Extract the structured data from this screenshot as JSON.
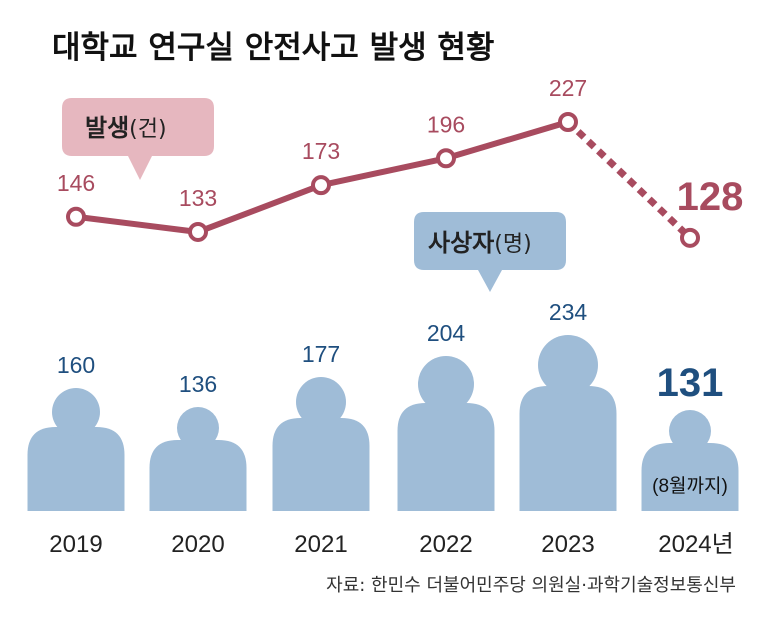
{
  "title": "대학교 연구실 안전사고 발생 현황",
  "source": "자료: 한민수 더불어민주당 의원실·과학기술정보통신부",
  "legend": {
    "incidents_main": "발생",
    "incidents_unit": "(건)",
    "casualties_main": "사상자",
    "casualties_unit": "(명)"
  },
  "note_2024": "(8월까지)",
  "colors": {
    "incidents": "#a84b5f",
    "incidents_bubble": "#e6b7bf",
    "casualties_fill": "#9fbcd7",
    "casualties_text": "#1f4f7f"
  },
  "chart_data": {
    "type": "bar+line",
    "title": "대학교 연구실 안전사고 발생 현황",
    "categories": [
      "2019",
      "2020",
      "2021",
      "2022",
      "2023",
      "2024년"
    ],
    "series": [
      {
        "name": "발생(건)",
        "type": "line",
        "values": [
          146,
          133,
          173,
          196,
          227,
          128
        ],
        "dashed_last_segment": true
      },
      {
        "name": "사상자(명)",
        "type": "bar",
        "values": [
          160,
          136,
          177,
          204,
          234,
          131
        ]
      }
    ],
    "annotation": "2024 (8월까지)",
    "source": "자료: 한민수 더불어민주당 의원실·과학기술정보통신부"
  }
}
